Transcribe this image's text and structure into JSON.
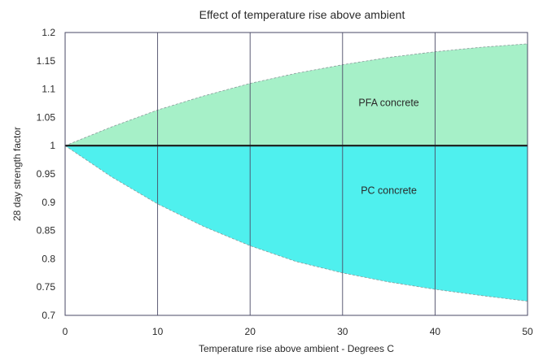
{
  "chart_data": {
    "type": "area",
    "title": "Effect of temperature rise above ambient",
    "xlabel": "Temperature rise above ambient - Degrees C",
    "ylabel": "28 day strength factor",
    "xlim": [
      0,
      50
    ],
    "ylim": [
      0.7,
      1.2
    ],
    "x_ticks": [
      "0",
      "10",
      "20",
      "30",
      "40",
      "50"
    ],
    "y_ticks": [
      "0.7",
      "0.75",
      "0.8",
      "0.85",
      "0.9",
      "0.95",
      "1",
      "1.05",
      "1.1",
      "1.15",
      "1.2"
    ],
    "grid": true,
    "baseline": 1.0,
    "x": [
      0,
      5,
      10,
      15,
      20,
      25,
      30,
      35,
      40,
      45,
      50
    ],
    "series": [
      {
        "name": "PFA concrete",
        "color": "#a6f0c8",
        "values": [
          1.0,
          1.033,
          1.063,
          1.088,
          1.11,
          1.128,
          1.143,
          1.156,
          1.166,
          1.174,
          1.18
        ]
      },
      {
        "name": "PC concrete",
        "color": "#4ff0ee",
        "values": [
          1.0,
          0.945,
          0.897,
          0.857,
          0.823,
          0.795,
          0.775,
          0.759,
          0.746,
          0.735,
          0.725
        ]
      }
    ],
    "baseline_color": "#1a1a1a"
  }
}
